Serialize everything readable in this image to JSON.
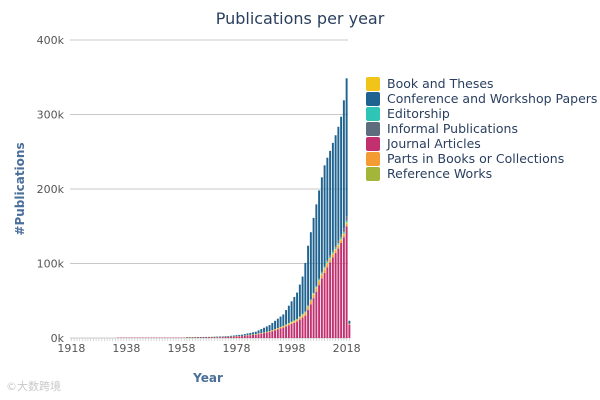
{
  "chart_data": {
    "type": "bar",
    "stacked": true,
    "title": "Publications per year",
    "xlabel": "Year",
    "ylabel": "#Publications",
    "ylim": [
      0,
      400000
    ],
    "xlim": [
      1918,
      2019
    ],
    "yticks": [
      {
        "value": 0,
        "label": "0k"
      },
      {
        "value": 100000,
        "label": "100k"
      },
      {
        "value": 200000,
        "label": "200k"
      },
      {
        "value": 300000,
        "label": "300k"
      },
      {
        "value": 400000,
        "label": "400k"
      }
    ],
    "xticks": [
      1918,
      1938,
      1958,
      1978,
      1998,
      2018
    ],
    "grid": "horizontal",
    "legend_position": "right",
    "colors": {
      "book_and_theses": "#f0c419",
      "conference": "#1f6391",
      "editorship": "#2ec4b6",
      "informal": "#5d6d7e",
      "journal": "#c2306f",
      "parts_in_books": "#f39c34",
      "reference": "#a3b63a"
    },
    "series": [
      {
        "key": "journal",
        "name": "Journal Articles",
        "points": [
          [
            1935,
            100
          ],
          [
            1950,
            200
          ],
          [
            1960,
            400
          ],
          [
            1970,
            800
          ],
          [
            1975,
            1500
          ],
          [
            1980,
            2500
          ],
          [
            1985,
            4500
          ],
          [
            1990,
            8000
          ],
          [
            1995,
            14000
          ],
          [
            2000,
            22000
          ],
          [
            2003,
            30000
          ],
          [
            2005,
            45000
          ],
          [
            2007,
            62000
          ],
          [
            2009,
            80000
          ],
          [
            2011,
            95000
          ],
          [
            2013,
            108000
          ],
          [
            2015,
            120000
          ],
          [
            2017,
            135000
          ],
          [
            2018,
            150000
          ],
          [
            2019,
            18000
          ]
        ]
      },
      {
        "key": "parts_in_books",
        "name": "Parts in Books or Collections",
        "points": [
          [
            1960,
            50
          ],
          [
            1980,
            300
          ],
          [
            1990,
            800
          ],
          [
            2000,
            2000
          ],
          [
            2005,
            4000
          ],
          [
            2008,
            5000
          ],
          [
            2010,
            4500
          ],
          [
            2014,
            3500
          ],
          [
            2018,
            3000
          ],
          [
            2019,
            500
          ]
        ]
      },
      {
        "key": "book_and_theses",
        "name": "Book and Theses",
        "points": [
          [
            1960,
            20
          ],
          [
            1980,
            100
          ],
          [
            1990,
            300
          ],
          [
            2000,
            800
          ],
          [
            2010,
            1500
          ],
          [
            2018,
            2000
          ],
          [
            2019,
            300
          ]
        ]
      },
      {
        "key": "editorship",
        "name": "Editorship",
        "points": [
          [
            1970,
            20
          ],
          [
            1990,
            200
          ],
          [
            2000,
            600
          ],
          [
            2010,
            1500
          ],
          [
            2018,
            2200
          ],
          [
            2019,
            300
          ]
        ]
      },
      {
        "key": "reference",
        "name": "Reference Works",
        "points": [
          [
            1990,
            10
          ],
          [
            2005,
            200
          ],
          [
            2018,
            400
          ],
          [
            2019,
            50
          ]
        ]
      },
      {
        "key": "informal",
        "name": "Informal Publications",
        "points": [
          [
            1990,
            20
          ],
          [
            2005,
            600
          ],
          [
            2010,
            1500
          ],
          [
            2015,
            3000
          ],
          [
            2018,
            6000
          ],
          [
            2019,
            1000
          ]
        ]
      },
      {
        "key": "conference",
        "name": "Conference and Workshop Papers",
        "points": [
          [
            1960,
            50
          ],
          [
            1970,
            300
          ],
          [
            1975,
            700
          ],
          [
            1980,
            1500
          ],
          [
            1985,
            3000
          ],
          [
            1990,
            8000
          ],
          [
            1995,
            15000
          ],
          [
            2000,
            35000
          ],
          [
            2002,
            50000
          ],
          [
            2004,
            80000
          ],
          [
            2006,
            100000
          ],
          [
            2008,
            118000
          ],
          [
            2010,
            135000
          ],
          [
            2012,
            140000
          ],
          [
            2014,
            148000
          ],
          [
            2016,
            158000
          ],
          [
            2018,
            185000
          ],
          [
            2019,
            3000
          ]
        ]
      }
    ]
  },
  "legend": {
    "items": [
      {
        "label": "Book and Theses",
        "color": "#f0c419"
      },
      {
        "label": "Conference and Workshop Papers",
        "color": "#1f6391"
      },
      {
        "label": "Editorship",
        "color": "#2ec4b6"
      },
      {
        "label": "Informal Publications",
        "color": "#5d6d7e"
      },
      {
        "label": "Journal Articles",
        "color": "#c2306f"
      },
      {
        "label": "Parts in Books or Collections",
        "color": "#f39c34"
      },
      {
        "label": "Reference Works",
        "color": "#a3b63a"
      }
    ]
  },
  "watermark": {
    "text": "©大数跨境"
  }
}
